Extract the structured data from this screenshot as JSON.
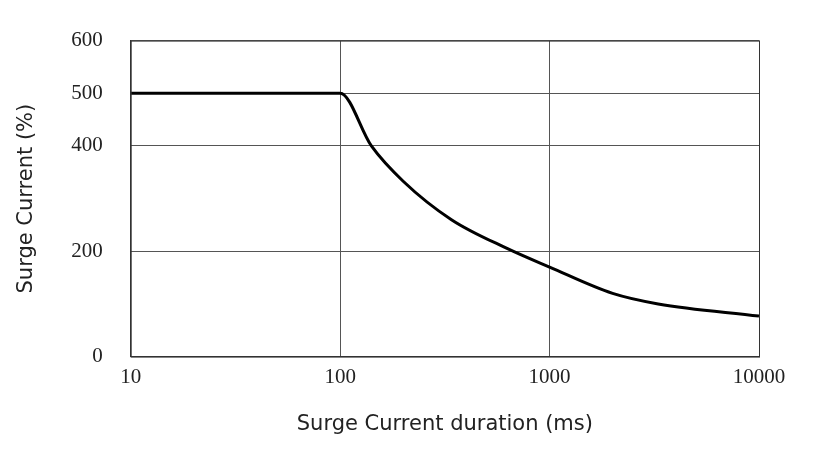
{
  "chart_data": {
    "type": "line",
    "x_label": "Surge Current duration (ms)",
    "y_label": "Surge Current (%)",
    "x": [
      10,
      100,
      141,
      200,
      340,
      630,
      1000,
      2000,
      3300,
      10000
    ],
    "values": [
      500,
      500,
      400,
      333,
      260,
      205,
      170,
      120,
      100,
      77
    ],
    "color": "#000000",
    "log": "x",
    "xlim": [
      10,
      10000
    ],
    "ylim": [
      0,
      600
    ],
    "xticks": [
      10,
      100,
      1000,
      10000
    ],
    "yticks": [
      0,
      200,
      400,
      500,
      600
    ],
    "grid": true
  }
}
